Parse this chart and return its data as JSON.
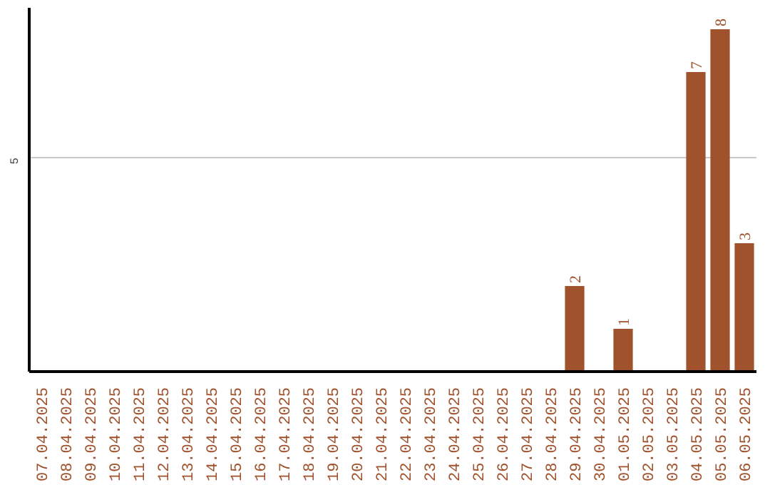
{
  "chart_data": {
    "type": "bar",
    "categories": [
      "07.04.2025",
      "08.04.2025",
      "09.04.2025",
      "10.04.2025",
      "11.04.2025",
      "12.04.2025",
      "13.04.2025",
      "14.04.2025",
      "15.04.2025",
      "16.04.2025",
      "17.04.2025",
      "18.04.2025",
      "19.04.2025",
      "20.04.2025",
      "21.04.2025",
      "22.04.2025",
      "23.04.2025",
      "24.04.2025",
      "25.04.2025",
      "26.04.2025",
      "27.04.2025",
      "28.04.2025",
      "29.04.2025",
      "30.04.2025",
      "01.05.2025",
      "02.05.2025",
      "03.05.2025",
      "04.05.2025",
      "05.05.2025",
      "06.05.2025"
    ],
    "values": [
      null,
      null,
      null,
      null,
      null,
      null,
      null,
      null,
      null,
      null,
      null,
      null,
      null,
      null,
      null,
      null,
      null,
      null,
      null,
      null,
      null,
      null,
      2,
      null,
      1,
      null,
      null,
      7,
      8,
      3
    ],
    "color": "#a0522d",
    "ylim": [
      0,
      8.5
    ],
    "yticks": [
      5
    ],
    "grid": "y",
    "data_labels": true
  }
}
